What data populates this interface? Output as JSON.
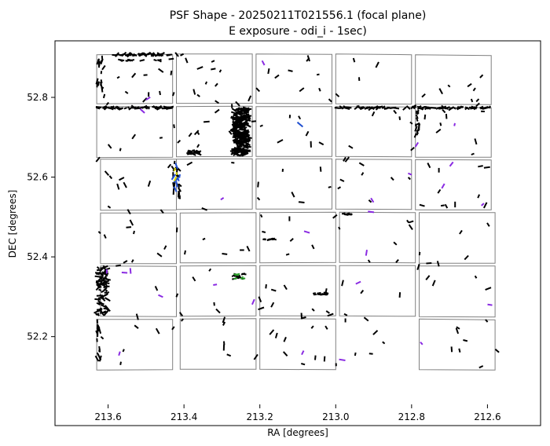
{
  "chart_data": {
    "type": "scatter",
    "title": "PSF Shape - 20250211T021556.1 (focal plane)",
    "subtitle": "E exposure - odi_i - 1sec)",
    "xlabel": "RA [degrees]",
    "ylabel": "DEC [degrees]",
    "xlim": [
      213.74,
      212.46
    ],
    "ylim": [
      52.03,
      52.995
    ],
    "x_ticks": [
      213.6,
      213.4,
      213.2,
      213.0,
      212.8,
      212.6
    ],
    "x_tick_labels": [
      "213.6",
      "213.4",
      "213.2",
      "213.0",
      "212.8",
      "212.6"
    ],
    "y_ticks": [
      52.2,
      52.4,
      52.6,
      52.8
    ],
    "y_tick_labels": [
      "52.2",
      "52.4",
      "52.6",
      "52.8"
    ],
    "grid": false,
    "legend": "none",
    "colors": {
      "ccd_outline": "#808080",
      "whisker_default": "#000000",
      "whisker_purple": "#8a2be2",
      "whisker_blue": "#1f4fd0",
      "whisker_green": "#2ca02c",
      "whisker_yellow": "#ddd800"
    },
    "ccd_outlines": [
      [
        [
          213.63,
          52.907
        ],
        [
          213.43,
          52.908
        ],
        [
          213.43,
          52.785
        ],
        [
          213.63,
          52.784
        ]
      ],
      [
        [
          213.42,
          52.909
        ],
        [
          213.22,
          52.909
        ],
        [
          213.22,
          52.785
        ],
        [
          213.42,
          52.785
        ]
      ],
      [
        [
          213.21,
          52.909
        ],
        [
          213.01,
          52.908
        ],
        [
          213.01,
          52.784
        ],
        [
          213.21,
          52.785
        ]
      ],
      [
        [
          213.0,
          52.909
        ],
        [
          212.8,
          52.907
        ],
        [
          212.8,
          52.783
        ],
        [
          213.0,
          52.784
        ]
      ],
      [
        [
          212.79,
          52.907
        ],
        [
          212.59,
          52.905
        ],
        [
          212.59,
          52.782
        ],
        [
          212.79,
          52.783
        ]
      ],
      [
        [
          213.63,
          52.777
        ],
        [
          213.43,
          52.777
        ],
        [
          213.43,
          52.65
        ],
        [
          213.63,
          52.649
        ]
      ],
      [
        [
          213.42,
          52.777
        ],
        [
          213.22,
          52.778
        ],
        [
          213.22,
          52.652
        ],
        [
          213.42,
          52.651
        ]
      ],
      [
        [
          213.21,
          52.777
        ],
        [
          213.01,
          52.777
        ],
        [
          213.01,
          52.652
        ],
        [
          213.21,
          52.652
        ]
      ],
      [
        [
          213.0,
          52.777
        ],
        [
          212.8,
          52.776
        ],
        [
          212.8,
          52.651
        ],
        [
          213.0,
          52.652
        ]
      ],
      [
        [
          212.79,
          52.776
        ],
        [
          212.59,
          52.774
        ],
        [
          212.59,
          52.65
        ],
        [
          212.79,
          52.65
        ]
      ],
      [
        [
          213.62,
          52.645
        ],
        [
          213.42,
          52.645
        ],
        [
          213.42,
          52.518
        ],
        [
          213.62,
          52.517
        ]
      ],
      [
        [
          213.42,
          52.645
        ],
        [
          213.22,
          52.646
        ],
        [
          213.22,
          52.52
        ],
        [
          213.42,
          52.519
        ]
      ],
      [
        [
          213.21,
          52.646
        ],
        [
          213.01,
          52.646
        ],
        [
          213.01,
          52.52
        ],
        [
          213.21,
          52.52
        ]
      ],
      [
        [
          213.0,
          52.645
        ],
        [
          212.8,
          52.644
        ],
        [
          212.8,
          52.519
        ],
        [
          213.0,
          52.52
        ]
      ],
      [
        [
          212.79,
          52.644
        ],
        [
          212.59,
          52.643
        ],
        [
          212.59,
          52.518
        ],
        [
          212.79,
          52.518
        ]
      ],
      [
        [
          213.62,
          52.51
        ],
        [
          213.42,
          52.51
        ],
        [
          213.42,
          52.383
        ],
        [
          213.62,
          52.383
        ]
      ],
      [
        [
          213.41,
          52.51
        ],
        [
          213.21,
          52.511
        ],
        [
          213.21,
          52.385
        ],
        [
          213.41,
          52.385
        ]
      ],
      [
        [
          213.2,
          52.511
        ],
        [
          213.0,
          52.512
        ],
        [
          213.0,
          52.386
        ],
        [
          213.2,
          52.385
        ]
      ],
      [
        [
          212.99,
          52.512
        ],
        [
          212.79,
          52.511
        ],
        [
          212.79,
          52.385
        ],
        [
          212.99,
          52.386
        ]
      ],
      [
        [
          212.78,
          52.511
        ],
        [
          212.58,
          52.511
        ],
        [
          212.58,
          52.384
        ],
        [
          212.78,
          52.384
        ]
      ],
      [
        [
          213.62,
          52.377
        ],
        [
          213.42,
          52.376
        ],
        [
          213.42,
          52.25
        ],
        [
          213.62,
          52.251
        ]
      ],
      [
        [
          213.41,
          52.377
        ],
        [
          213.21,
          52.378
        ],
        [
          213.21,
          52.252
        ],
        [
          213.41,
          52.251
        ]
      ],
      [
        [
          213.2,
          52.378
        ],
        [
          213.0,
          52.378
        ],
        [
          213.0,
          52.252
        ],
        [
          213.2,
          52.252
        ]
      ],
      [
        [
          212.99,
          52.378
        ],
        [
          212.79,
          52.378
        ],
        [
          212.79,
          52.251
        ],
        [
          212.99,
          52.252
        ]
      ],
      [
        [
          212.78,
          52.377
        ],
        [
          212.58,
          52.377
        ],
        [
          212.58,
          52.249
        ],
        [
          212.78,
          52.25
        ]
      ],
      [
        [
          213.63,
          52.243
        ],
        [
          213.43,
          52.243
        ],
        [
          213.43,
          52.117
        ],
        [
          213.63,
          52.116
        ]
      ],
      [
        [
          213.41,
          52.244
        ],
        [
          213.21,
          52.245
        ],
        [
          213.21,
          52.118
        ],
        [
          213.41,
          52.118
        ]
      ],
      [
        [
          213.2,
          52.245
        ],
        [
          213.0,
          52.244
        ],
        [
          213.0,
          52.117
        ],
        [
          213.2,
          52.118
        ]
      ],
      [
        [
          212.78,
          52.244
        ],
        [
          212.58,
          52.242
        ],
        [
          212.58,
          52.116
        ],
        [
          212.78,
          52.117
        ]
      ]
    ],
    "whisker_groups": [
      {
        "color": "#000000",
        "x_range": [
          213.6,
          213.4
        ],
        "y_range": [
          52.905,
          52.909
        ],
        "count": 40,
        "length": 0.012,
        "angle": 0,
        "jitter": 0.6
      },
      {
        "color": "#000000",
        "x_range": [
          213.58,
          213.43
        ],
        "y_range": [
          52.892,
          52.894
        ],
        "count": 10,
        "length": 0.012,
        "angle": 0,
        "jitter": 0.4
      },
      {
        "color": "#000000",
        "x_range": [
          213.63,
          213.61
        ],
        "y_range": [
          52.8,
          52.9
        ],
        "count": 18,
        "length": 0.012,
        "angle": 80,
        "jitter": 0.3
      },
      {
        "color": "#000000",
        "x_range": [
          213.63,
          213.43
        ],
        "y_range": [
          52.772,
          52.776
        ],
        "count": 45,
        "length": 0.012,
        "angle": 0,
        "jitter": 0.5
      },
      {
        "color": "#000000",
        "x_range": [
          213.0,
          212.59
        ],
        "y_range": [
          52.772,
          52.776
        ],
        "count": 80,
        "length": 0.012,
        "angle": 0,
        "jitter": 0.5
      },
      {
        "color": "#000000",
        "x_range": [
          212.79,
          212.78
        ],
        "y_range": [
          52.7,
          52.77
        ],
        "count": 14,
        "length": 0.012,
        "angle": 90,
        "jitter": 0.3
      },
      {
        "color": "#000000",
        "x_range": [
          213.27,
          213.23
        ],
        "y_range": [
          52.655,
          52.775
        ],
        "count": 260,
        "length": 0.014,
        "angle": 0,
        "jitter": 0.4
      },
      {
        "color": "#000000",
        "x_range": [
          213.39,
          213.36
        ],
        "y_range": [
          52.657,
          52.666
        ],
        "count": 24,
        "length": 0.01,
        "angle": 0,
        "jitter": 0.3
      },
      {
        "color": "#000000",
        "x_range": [
          213.63,
          213.6
        ],
        "y_range": [
          52.255,
          52.375
        ],
        "count": 90,
        "length": 0.012,
        "angle": 0,
        "jitter": 0.6
      },
      {
        "color": "#000000",
        "x_range": [
          213.63,
          213.62
        ],
        "y_range": [
          52.13,
          52.24
        ],
        "count": 16,
        "length": 0.012,
        "angle": 95,
        "jitter": 0.3
      },
      {
        "color": "#000000",
        "x_range": [
          213.43,
          213.41
        ],
        "y_range": [
          52.52,
          52.64
        ],
        "count": 20,
        "length": 0.012,
        "angle": 85,
        "jitter": 0.6
      },
      {
        "color": "#000000",
        "x_range": [
          213.06,
          213.02
        ],
        "y_range": [
          52.305,
          52.31
        ],
        "count": 12,
        "length": 0.01,
        "angle": 0,
        "jitter": 0.2
      },
      {
        "color": "#000000",
        "x_range": [
          213.19,
          213.16
        ],
        "y_range": [
          52.442,
          52.446
        ],
        "count": 8,
        "length": 0.01,
        "angle": 0,
        "jitter": 0.2
      },
      {
        "color": "#000000",
        "x_range": [
          212.98,
          212.96
        ],
        "y_range": [
          52.505,
          52.509
        ],
        "count": 6,
        "length": 0.01,
        "angle": 0,
        "jitter": 0.2
      },
      {
        "color": "#000000",
        "x_range": [
          213.27,
          213.24
        ],
        "y_range": [
          52.343,
          52.358
        ],
        "count": 14,
        "length": 0.01,
        "angle": 0,
        "jitter": 0.3
      },
      {
        "color": "#000000",
        "x_range": [
          213.63,
          212.57
        ],
        "y_range": [
          52.12,
          52.9
        ],
        "count": 230,
        "length": 0.012,
        "angle": 0,
        "jitter": 1.6
      },
      {
        "color": "#8a2be2",
        "x_range": [
          213.63,
          212.59
        ],
        "y_range": [
          52.12,
          52.9
        ],
        "count": 26,
        "length": 0.012,
        "angle": 60,
        "jitter": 1.5
      },
      {
        "color": "#1f4fd0",
        "x_range": [
          213.43,
          213.41
        ],
        "y_range": [
          52.56,
          52.63
        ],
        "count": 8,
        "length": 0.012,
        "angle": 80,
        "jitter": 0.5
      },
      {
        "color": "#2ca02c",
        "x_range": [
          213.27,
          213.24
        ],
        "y_range": [
          52.345,
          52.357
        ],
        "count": 6,
        "length": 0.01,
        "angle": 20,
        "jitter": 0.3
      },
      {
        "color": "#ddd800",
        "x_range": [
          213.425,
          213.415
        ],
        "y_range": [
          52.59,
          52.62
        ],
        "count": 3,
        "length": 0.01,
        "angle": 80,
        "jitter": 0.3
      },
      {
        "color": "#1f4fd0",
        "x_range": [
          213.1,
          213.08
        ],
        "y_range": [
          52.725,
          52.735
        ],
        "count": 1,
        "length": 0.02,
        "angle": -40,
        "jitter": 0
      }
    ]
  }
}
